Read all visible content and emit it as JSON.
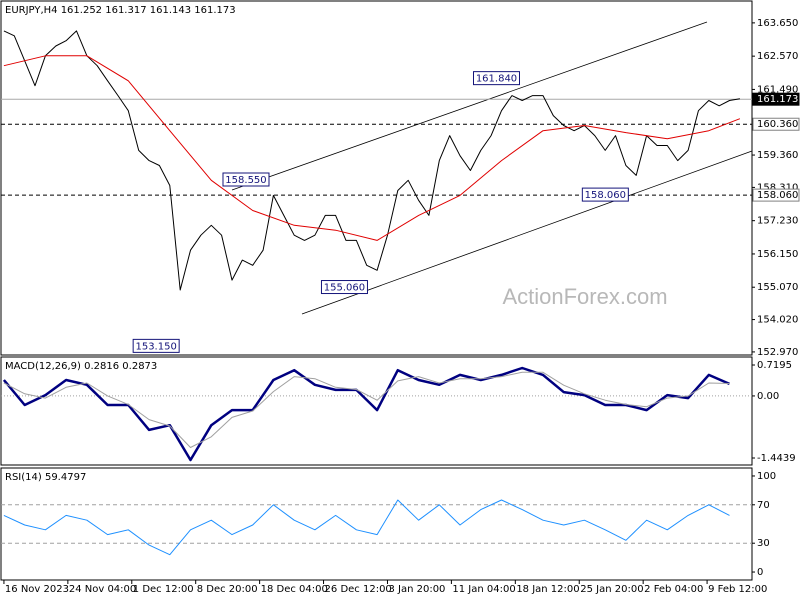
{
  "chart_data": [
    {
      "type": "line",
      "title": "EURJPY,H4 161.252 161.317 161.143 161.173",
      "watermark": "ActionForex.com",
      "xlim": [
        -1.7,
        433
      ],
      "ylim": [
        152.87,
        164.36
      ],
      "yticks": [
        {
          "value": 163.65,
          "label": "163.650"
        },
        {
          "value": 162.57,
          "label": "162.570"
        },
        {
          "value": 161.49,
          "label": "161.490"
        },
        {
          "value": 159.36,
          "label": "159.360"
        },
        {
          "value": 158.31,
          "label": "158.310"
        },
        {
          "value": 157.23,
          "label": "157.230"
        },
        {
          "value": 156.15,
          "label": "156.150"
        },
        {
          "value": 155.07,
          "label": "155.070"
        },
        {
          "value": 154.02,
          "label": "154.020"
        },
        {
          "value": 152.97,
          "label": "152.970"
        }
      ],
      "series": [
        {
          "color": "#000000",
          "x": [
            0,
            6,
            12,
            18,
            24,
            30,
            36,
            42,
            48,
            54,
            60,
            66,
            72,
            78,
            84,
            90,
            96,
            102,
            108,
            114,
            120,
            126,
            132,
            138,
            144,
            150,
            156,
            162,
            168,
            174,
            180,
            186,
            192,
            198,
            204,
            210,
            216,
            222,
            228,
            234,
            240,
            246,
            252,
            258,
            264,
            270,
            276,
            282,
            288,
            294,
            300,
            306,
            312,
            318,
            324,
            330,
            336,
            342,
            348,
            354,
            360,
            366,
            372,
            378,
            384,
            390,
            396,
            402,
            408,
            414,
            420,
            426
          ],
          "values": [
            163.39,
            163.23,
            162.42,
            161.61,
            162.58,
            162.9,
            163.07,
            163.39,
            162.58,
            162.26,
            161.77,
            161.29,
            160.8,
            159.51,
            159.18,
            159.02,
            158.37,
            154.98,
            156.27,
            156.76,
            157.08,
            156.76,
            155.3,
            155.95,
            155.78,
            156.27,
            158.05,
            157.4,
            156.76,
            156.59,
            156.76,
            157.4,
            157.4,
            156.59,
            156.59,
            155.78,
            155.62,
            156.76,
            158.21,
            158.54,
            157.89,
            157.4,
            159.18,
            159.99,
            159.34,
            158.86,
            159.51,
            159.99,
            160.8,
            161.29,
            161.13,
            161.29,
            161.29,
            160.64,
            160.32,
            160.15,
            160.32,
            159.99,
            159.51,
            159.99,
            159.02,
            158.7,
            159.99,
            159.67,
            159.67,
            159.18,
            159.51,
            160.8,
            161.13,
            160.96,
            161.13,
            161.19
          ]
        },
        {
          "color": "#e00000",
          "x": [
            0,
            24,
            48,
            72,
            96,
            120,
            144,
            168,
            192,
            216,
            240,
            264,
            288,
            312,
            336,
            360,
            384,
            408,
            426
          ],
          "values": [
            162.26,
            162.58,
            162.58,
            161.77,
            160.15,
            158.54,
            157.56,
            157.08,
            156.92,
            156.59,
            157.4,
            158.05,
            159.18,
            160.15,
            160.32,
            160.09,
            159.89,
            160.15,
            160.54
          ]
        }
      ],
      "levels": [
        {
          "value": 161.173,
          "label": "161.173",
          "style": "current"
        },
        {
          "value": 160.36,
          "label": "160.360",
          "style": "dashed"
        },
        {
          "value": 158.06,
          "label": "158.060",
          "style": "dashed"
        }
      ],
      "annotations": [
        {
          "x": 299,
          "value": 161.84,
          "label": "161.840"
        },
        {
          "x": 154,
          "value": 158.55,
          "label": "158.550"
        },
        {
          "x": 211,
          "value": 155.06,
          "label": "155.060"
        },
        {
          "x": 102,
          "value": 153.15,
          "label": "153.150"
        },
        {
          "x": 362,
          "value": 158.06,
          "label": "158.060"
        }
      ]
    },
    {
      "type": "line",
      "title": "MACD(12,26,9) 0.2816 0.2873",
      "xlim": [
        -1.7,
        433
      ],
      "ylim": [
        -1.607,
        0.906
      ],
      "yticks": [
        0.7195,
        {
          "value": 0,
          "label": "0.00"
        },
        -1.4439
      ],
      "levels": [
        {
          "value": 0,
          "style": "dotted"
        }
      ],
      "series": [
        {
          "color": "#000080",
          "x": [
            0,
            12,
            24,
            36,
            48,
            60,
            72,
            84,
            96,
            108,
            120,
            132,
            144,
            156,
            168,
            180,
            192,
            204,
            216,
            228,
            240,
            252,
            264,
            276,
            288,
            300,
            312,
            324,
            336,
            348,
            360,
            372,
            384,
            396,
            408,
            420
          ],
          "values": [
            0.37,
            -0.21,
            0.02,
            0.37,
            0.26,
            -0.21,
            -0.21,
            -0.79,
            -0.68,
            -1.49,
            -0.68,
            -0.33,
            -0.33,
            0.37,
            0.6,
            0.26,
            0.14,
            0.14,
            -0.33,
            0.6,
            0.37,
            0.26,
            0.49,
            0.37,
            0.49,
            0.65,
            0.49,
            0.09,
            0.02,
            -0.21,
            -0.21,
            -0.33,
            0.02,
            -0.05,
            0.49,
            0.28
          ]
        },
        {
          "color": "#a0a0a0",
          "x": [
            0,
            12,
            24,
            36,
            48,
            60,
            72,
            84,
            96,
            108,
            120,
            132,
            144,
            156,
            168,
            180,
            192,
            204,
            216,
            228,
            240,
            252,
            264,
            276,
            288,
            300,
            312,
            324,
            336,
            348,
            360,
            372,
            384,
            396,
            408,
            420
          ],
          "values": [
            0.3,
            0.05,
            -0.05,
            0.2,
            0.3,
            0,
            -0.2,
            -0.55,
            -0.7,
            -1.2,
            -0.95,
            -0.5,
            -0.35,
            0.1,
            0.45,
            0.4,
            0.2,
            0.15,
            -0.1,
            0.35,
            0.45,
            0.3,
            0.4,
            0.4,
            0.45,
            0.55,
            0.55,
            0.25,
            0.05,
            -0.1,
            -0.2,
            -0.25,
            -0.05,
            0,
            0.3,
            0.29
          ]
        }
      ]
    },
    {
      "type": "line",
      "title": "RSI(14) 59.4797",
      "xlim": [
        -1.7,
        433
      ],
      "ylim": [
        -8.3,
        108.3
      ],
      "yticks": [
        100,
        70,
        30,
        0
      ],
      "levels": [
        {
          "value": 70,
          "style": "dashed"
        },
        {
          "value": 30,
          "style": "dashed"
        }
      ],
      "xticks": [
        {
          "value": 0,
          "label": "16 Nov 2023"
        },
        {
          "value": 37,
          "label": "24 Nov 04:00"
        },
        {
          "value": 74,
          "label": "1 Dec 12:00"
        },
        {
          "value": 111,
          "label": "8 Dec 20:00"
        },
        {
          "value": 148,
          "label": "18 Dec 04:00"
        },
        {
          "value": 185,
          "label": "26 Dec 12:00"
        },
        {
          "value": 222,
          "label": "3 Jan 20:00"
        },
        {
          "value": 259,
          "label": "11 Jan 04:00"
        },
        {
          "value": 296,
          "label": "18 Jan 12:00"
        },
        {
          "value": 333,
          "label": "25 Jan 20:00"
        },
        {
          "value": 370,
          "label": "2 Feb 04:00"
        },
        {
          "value": 407,
          "label": "9 Feb 12:00"
        }
      ],
      "series": [
        {
          "color": "#1e90ff",
          "x": [
            0,
            12,
            24,
            36,
            48,
            60,
            72,
            84,
            96,
            108,
            120,
            132,
            144,
            156,
            168,
            180,
            192,
            204,
            216,
            228,
            240,
            252,
            264,
            276,
            288,
            300,
            312,
            324,
            336,
            348,
            360,
            372,
            384,
            396,
            408,
            420
          ],
          "values": [
            59,
            49,
            44,
            59,
            54,
            39,
            44,
            28,
            18,
            44,
            54,
            39,
            49,
            70,
            54,
            44,
            59,
            44,
            39,
            75,
            54,
            70,
            49,
            65,
            75,
            65,
            54,
            49,
            54,
            44,
            33,
            54,
            44,
            59,
            70,
            59
          ]
        }
      ]
    }
  ]
}
